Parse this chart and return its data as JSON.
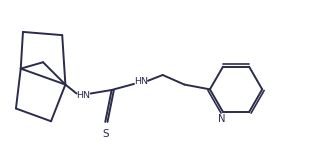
{
  "background": "#ffffff",
  "line_color": "#2b2b4b",
  "line_width": 1.4,
  "figsize": [
    3.19,
    1.5
  ],
  "dpi": 100,
  "xlim": [
    0,
    10
  ],
  "ylim": [
    0,
    4.7
  ]
}
